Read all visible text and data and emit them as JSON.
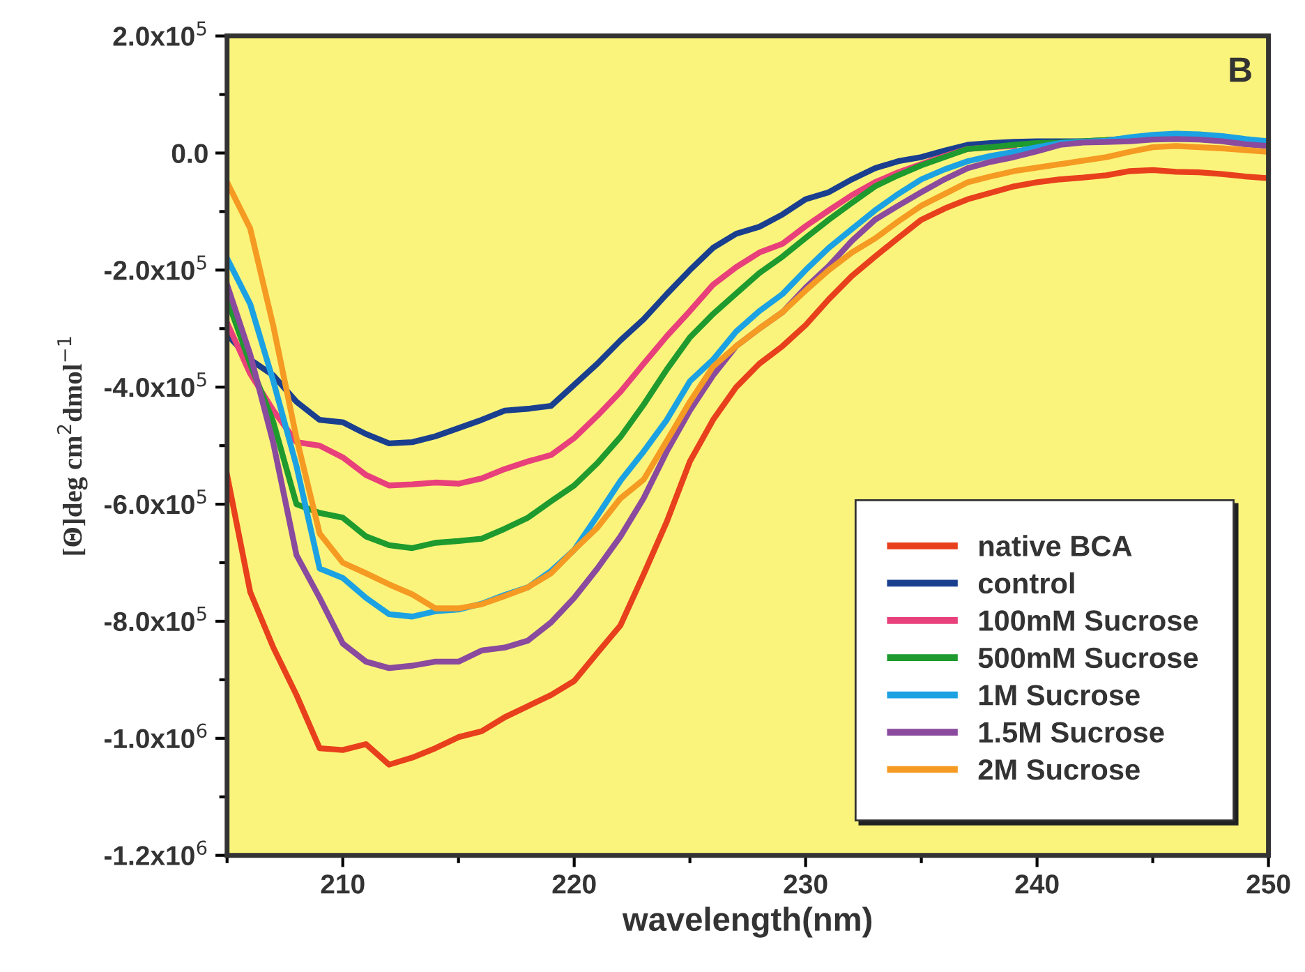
{
  "chart_data": {
    "type": "line",
    "xlabel": "wavelength(nm)",
    "ylabel": "[Θ]deg cm$^{2}$dmol$^{−1}$",
    "annotations": [
      "B"
    ],
    "x": [
      205,
      206,
      207,
      208,
      209,
      210,
      211,
      212,
      213,
      214,
      215,
      216,
      217,
      218,
      219,
      220,
      221,
      222,
      223,
      224,
      225,
      226,
      227,
      228,
      229,
      230,
      231,
      232,
      233,
      234,
      235,
      236,
      237,
      238,
      239,
      240,
      241,
      242,
      243,
      244,
      245,
      246,
      247,
      248,
      249,
      250
    ],
    "xlim": [
      205,
      250
    ],
    "xticks": [
      {
        "value": 205,
        "label": null
      },
      210,
      {
        "value": 215,
        "label": null
      },
      220,
      {
        "value": 225,
        "label": null
      },
      230,
      {
        "value": 235,
        "label": null
      },
      240,
      {
        "value": 245,
        "label": null
      },
      250
    ],
    "ylim": [
      -1200000.0,
      200000.0
    ],
    "yticks": [
      {
        "value": -1200000.0,
        "label": "-1.2x10$^{6}$"
      },
      {
        "value": -1100000.0,
        "label": null
      },
      {
        "value": -1000000.0,
        "label": "-1.0x10$^{6}$"
      },
      {
        "value": -900000.0,
        "label": null
      },
      {
        "value": -800000.0,
        "label": "-8.0x10$^{5}$"
      },
      {
        "value": -700000.0,
        "label": null
      },
      {
        "value": -600000.0,
        "label": "-6.0x10$^{5}$"
      },
      {
        "value": -500000.0,
        "label": null
      },
      {
        "value": -400000.0,
        "label": "-4.0x10$^{5}$"
      },
      {
        "value": -300000.0,
        "label": null
      },
      {
        "value": -200000.0,
        "label": "-2.0x10$^{5}$"
      },
      {
        "value": -100000.0,
        "label": null
      },
      {
        "value": 0,
        "label": "0.0"
      },
      {
        "value": 100000.0,
        "label": null
      },
      {
        "value": 200000.0,
        "label": "2.0x10$^{5}$"
      }
    ],
    "grid": false,
    "legend": "bottom right",
    "marker": "none",
    "line_style": "solid",
    "series": [
      {
        "name": "native BCA",
        "color": "#e8401c",
        "values": [
          -550000.0,
          -750000.0,
          -845000.0,
          -926000.0,
          -1017000.0,
          -1020000.0,
          -1010000.0,
          -1045000.0,
          -1033000.0,
          -1017000.0,
          -998000.0,
          -988000.0,
          -964000.0,
          -945000.0,
          -926000.0,
          -902000.0,
          -854000.0,
          -807000.0,
          -720000.0,
          -630000.0,
          -527000.0,
          -456000.0,
          -400000.0,
          -360000.0,
          -330000.0,
          -294000.0,
          -250000.0,
          -210000.0,
          -177000.0,
          -145000.0,
          -114000.0,
          -95000.0,
          -79000.0,
          -68000.0,
          -57000.0,
          -50000.0,
          -45000.0,
          -42000.0,
          -38000.0,
          -31000.0,
          -29000.0,
          -32000.0,
          -33000.0,
          -36000.0,
          -40000.0,
          -43000.0
        ]
      },
      {
        "name": "control",
        "color": "#1a3f8f",
        "values": [
          -310000.0,
          -353000.0,
          -380000.0,
          -425000.0,
          -456000.0,
          -460000.0,
          -480000.0,
          -496000.0,
          -494000.0,
          -484000.0,
          -470000.0,
          -456000.0,
          -440000.0,
          -437000.0,
          -432000.0,
          -396000.0,
          -360000.0,
          -320000.0,
          -284000.0,
          -241000.0,
          -200000.0,
          -162000.0,
          -138000.0,
          -126000.0,
          -105000.0,
          -79000.0,
          -67000.0,
          -45000.0,
          -26000.0,
          -14000.0,
          -7000.0,
          4000.0,
          14000.0,
          17000.0,
          19000.0,
          20000.0,
          20000.0,
          20000.0,
          22000.0,
          25000.0,
          null,
          null,
          null,
          null,
          null,
          null
        ]
      },
      {
        "name": "100mM Sucrose",
        "color": "#e8407a",
        "values": [
          -290000.0,
          -377000.0,
          -440000.0,
          -494000.0,
          -500000.0,
          -520000.0,
          -550000.0,
          -568000.0,
          -566000.0,
          -563000.0,
          -565000.0,
          -556000.0,
          -540000.0,
          -527000.0,
          -516000.0,
          -487000.0,
          -449000.0,
          -408000.0,
          -360000.0,
          -313000.0,
          -270000.0,
          -225000.0,
          -195000.0,
          -170000.0,
          -155000.0,
          -125000.0,
          -98000.0,
          -72000.0,
          -50000.0,
          -33000.0,
          -19000.0,
          -5000.0,
          7000.0,
          10000.0,
          12000.0,
          null,
          null,
          null,
          null,
          null,
          null,
          null,
          null,
          null,
          null,
          null
        ]
      },
      {
        "name": "500mM Sucrose",
        "color": "#1e9a2e",
        "values": [
          -250000.0,
          -360000.0,
          -460000.0,
          -600000.0,
          -615000.0,
          -623000.0,
          -655000.0,
          -670000.0,
          -675000.0,
          -666000.0,
          -663000.0,
          -659000.0,
          -642000.0,
          -623000.0,
          -595000.0,
          -568000.0,
          -530000.0,
          -485000.0,
          -430000.0,
          -370000.0,
          -315000.0,
          -275000.0,
          -240000.0,
          -205000.0,
          -177000.0,
          -145000.0,
          -114000.0,
          -85000.0,
          -57000.0,
          -38000.0,
          -21000.0,
          -7000.0,
          7000.0,
          10000.0,
          14000.0,
          17000.0,
          18000.0,
          20000.0,
          22000.0,
          null,
          null,
          null,
          null,
          null,
          null,
          null
        ]
      },
      {
        "name": "1M Sucrose",
        "color": "#1ca2e2",
        "values": [
          -180000.0,
          -258000.0,
          -390000.0,
          -535000.0,
          -710000.0,
          -726000.0,
          -760000.0,
          -788000.0,
          -792000.0,
          -783000.0,
          -780000.0,
          -770000.0,
          -755000.0,
          -742000.0,
          -714000.0,
          -678000.0,
          -620000.0,
          -560000.0,
          -510000.0,
          -456000.0,
          -390000.0,
          -353000.0,
          -305000.0,
          -270000.0,
          -241000.0,
          -200000.0,
          -162000.0,
          -130000.0,
          -98000.0,
          -70000.0,
          -45000.0,
          -28000.0,
          -14000.0,
          -5000.0,
          2000.0,
          10000.0,
          17000.0,
          19000.0,
          21000.0,
          27000.0,
          31000.0,
          33000.0,
          32000.0,
          29000.0,
          24000.0,
          20000.0
        ]
      },
      {
        "name": "1.5M Sucrose",
        "color": "#8a4a9e",
        "values": [
          -225000.0,
          -344000.0,
          -496000.0,
          -687000.0,
          -760000.0,
          -838000.0,
          -869000.0,
          -880000.0,
          -876000.0,
          -869000.0,
          -869000.0,
          -850000.0,
          -845000.0,
          -833000.0,
          -802000.0,
          -760000.0,
          -710000.0,
          -655000.0,
          -590000.0,
          -510000.0,
          -440000.0,
          -380000.0,
          -330000.0,
          -300000.0,
          -272000.0,
          -230000.0,
          -193000.0,
          -150000.0,
          -114000.0,
          -90000.0,
          -67000.0,
          -45000.0,
          -26000.0,
          -15000.0,
          -7000.0,
          3000.0,
          14000.0,
          18000.0,
          19000.0,
          20000.0,
          23000.0,
          24000.0,
          23000.0,
          20000.0,
          15000.0,
          12000.0
        ]
      },
      {
        "name": "2M Sucrose",
        "color": "#f59a22",
        "values": [
          -50000.0,
          -129000.0,
          -296000.0,
          -487000.0,
          -650000.0,
          -700000.0,
          -718000.0,
          -737000.0,
          -754000.0,
          -778000.0,
          -778000.0,
          -771000.0,
          -757000.0,
          -742000.0,
          -718000.0,
          -678000.0,
          -640000.0,
          -590000.0,
          -558000.0,
          -492000.0,
          -425000.0,
          -365000.0,
          -330000.0,
          -300000.0,
          -272000.0,
          -235000.0,
          -200000.0,
          -170000.0,
          -146000.0,
          -117000.0,
          -90000.0,
          -70000.0,
          -50000.0,
          -40000.0,
          -31000.0,
          -25000.0,
          -19000.0,
          -13000.0,
          -7000.0,
          2000.0,
          10000.0,
          12000.0,
          10000.0,
          8000.0,
          5000.0,
          2000.0
        ]
      }
    ]
  }
}
